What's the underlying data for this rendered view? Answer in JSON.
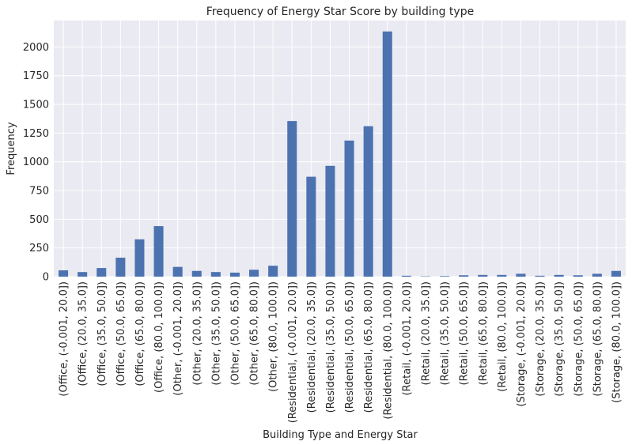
{
  "chart_data": {
    "type": "bar",
    "title": "Frequency of Energy Star Score by building type",
    "xlabel": "Building Type and Energy Star",
    "ylabel": "Frequency",
    "ylim": [
      0,
      2230
    ],
    "yticks": [
      0,
      250,
      500,
      750,
      1000,
      1250,
      1500,
      1750,
      2000
    ],
    "grid": true,
    "categories": [
      "(Office, (-0.001, 20.0])",
      "(Office, (20.0, 35.0])",
      "(Office, (35.0, 50.0])",
      "(Office, (50.0, 65.0])",
      "(Office, (65.0, 80.0])",
      "(Office, (80.0, 100.0])",
      "(Other, (-0.001, 20.0])",
      "(Other, (20.0, 35.0])",
      "(Other, (35.0, 50.0])",
      "(Other, (50.0, 65.0])",
      "(Other, (65.0, 80.0])",
      "(Other, (80.0, 100.0])",
      "(Residential, (-0.001, 20.0])",
      "(Residential, (20.0, 35.0])",
      "(Residential, (35.0, 50.0])",
      "(Residential, (50.0, 65.0])",
      "(Residential, (65.0, 80.0])",
      "(Residential, (80.0, 100.0])",
      "(Retail, (-0.001, 20.0])",
      "(Retail, (20.0, 35.0])",
      "(Retail, (35.0, 50.0])",
      "(Retail, (50.0, 65.0])",
      "(Retail, (65.0, 80.0])",
      "(Retail, (80.0, 100.0])",
      "(Storage, (-0.001, 20.0])",
      "(Storage, (20.0, 35.0])",
      "(Storage, (35.0, 50.0])",
      "(Storage, (50.0, 65.0])",
      "(Storage, (65.0, 80.0])",
      "(Storage, (80.0, 100.0])"
    ],
    "values": [
      55,
      40,
      75,
      165,
      325,
      440,
      85,
      50,
      40,
      35,
      60,
      95,
      1355,
      870,
      965,
      1185,
      1310,
      2135,
      8,
      3,
      5,
      12,
      15,
      15,
      25,
      8,
      15,
      12,
      25,
      50
    ],
    "colors": {
      "bar": "#4c72b0",
      "plot_background": "#eaeaf2",
      "grid": "#ffffff",
      "text": "#262626"
    }
  }
}
